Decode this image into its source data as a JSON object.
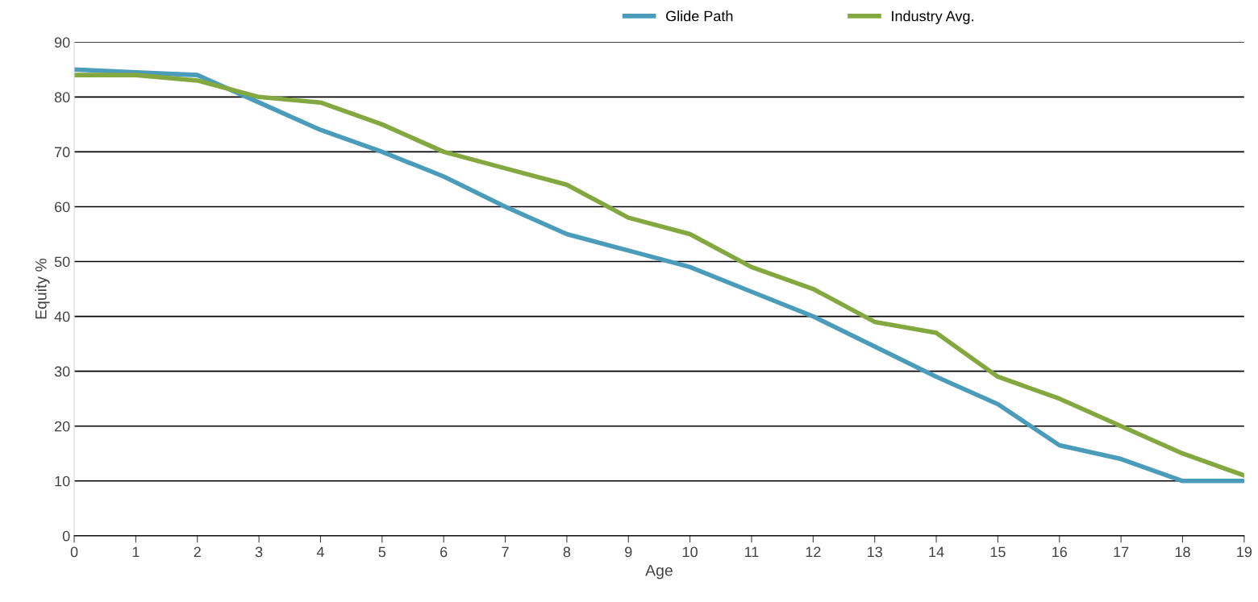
{
  "chart_data": {
    "type": "line",
    "xlabel": "Age",
    "ylabel": "Equity %",
    "x": [
      0,
      1,
      2,
      3,
      4,
      5,
      6,
      7,
      8,
      9,
      10,
      11,
      12,
      13,
      14,
      15,
      16,
      17,
      18,
      19
    ],
    "series": [
      {
        "name": "Glide Path",
        "color": "#4a9cba",
        "values": [
          85,
          84.5,
          84,
          79,
          74,
          70,
          65.5,
          60,
          55,
          52,
          49,
          44.5,
          40,
          34.5,
          29,
          24,
          16.5,
          14,
          10,
          10
        ]
      },
      {
        "name": "Industry Avg.",
        "color": "#84a840",
        "values": [
          84,
          84,
          83,
          80,
          79,
          75,
          70,
          67,
          64,
          58,
          55,
          49,
          45,
          39,
          37,
          29,
          25,
          20,
          15,
          11
        ]
      }
    ],
    "xlim": [
      0,
      19
    ],
    "xticks": [
      0,
      1,
      2,
      3,
      4,
      5,
      6,
      7,
      8,
      9,
      10,
      11,
      12,
      13,
      14,
      15,
      16,
      17,
      18,
      19
    ],
    "ylim": [
      0,
      90
    ],
    "yticks": [
      0,
      10,
      20,
      30,
      40,
      50,
      60,
      70,
      80,
      90
    ],
    "grid": "y",
    "legend": "top",
    "marker": "none",
    "line_style": "solid"
  }
}
